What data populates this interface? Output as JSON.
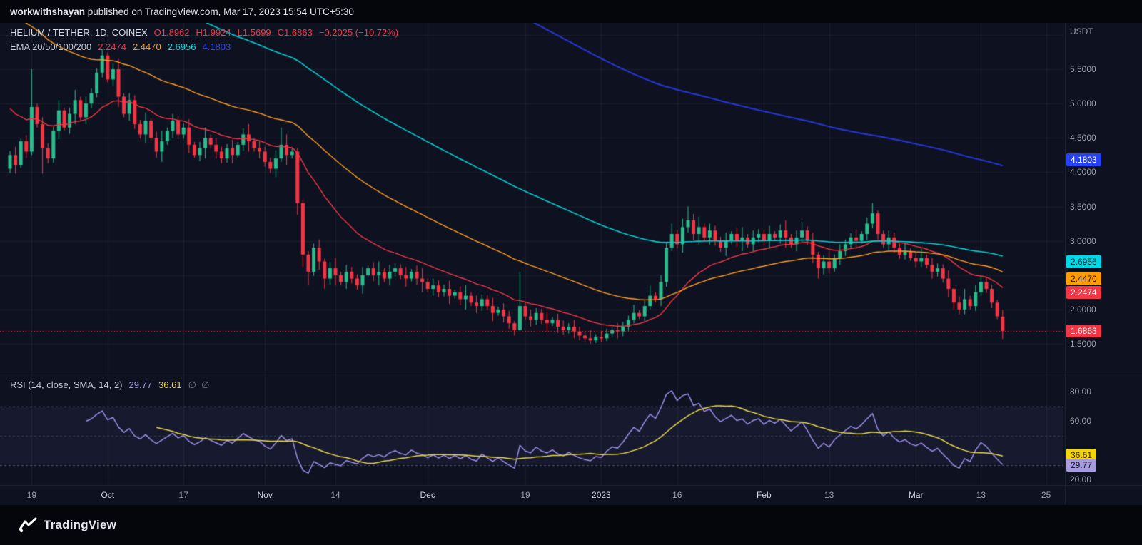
{
  "banner": {
    "user": "workwithshayan",
    "rest": " published on TradingView.com, Mar 17, 2023 15:54 UTC+5:30"
  },
  "header": {
    "symbol": "HELIUM / TETHER, 1D, COINEX",
    "ohlc": {
      "open": "O1.8962",
      "high": "H1.9924",
      "low": "L1.5699",
      "close": "C1.6863",
      "change": "−0.2025 (−10.72%)"
    },
    "ema_label": "EMA 20/50/100/200",
    "ema_values": [
      {
        "text": "2.2474",
        "color": "#f23645"
      },
      {
        "text": "2.4470",
        "color": "#ff9d1c"
      },
      {
        "text": "2.6956",
        "color": "#00dfdf"
      },
      {
        "text": "4.1803",
        "color": "#3148ee"
      }
    ]
  },
  "rsi_legend": {
    "label": "RSI (14, close, SMA, 14, 2)",
    "value_rsi": "29.77",
    "value_sma": "36.61",
    "empty": "∅  ∅"
  },
  "price_axis": {
    "currency": "USDT",
    "labels": [
      {
        "text": "5.5000",
        "price": 5.5
      },
      {
        "text": "5.0000",
        "price": 5.0
      },
      {
        "text": "4.5000",
        "price": 4.5
      },
      {
        "text": "4.0000",
        "price": 4.0
      },
      {
        "text": "3.5000",
        "price": 3.5
      },
      {
        "text": "3.0000",
        "price": 3.0
      },
      {
        "text": "2.0000",
        "price": 2.0
      },
      {
        "text": "1.5000",
        "price": 1.5
      }
    ],
    "badges": [
      {
        "text": "4.1803",
        "price": 4.1803,
        "bg": "#2742f5",
        "fg": "#ffffff"
      },
      {
        "text": "2.6956",
        "price": 2.6956,
        "bg": "#00d8e8",
        "fg": "#032b30"
      },
      {
        "text": "2.4470",
        "price": 2.447,
        "bg": "#ff9d00",
        "fg": "#2b1700"
      },
      {
        "text": "2.2474",
        "price": 2.2474,
        "bg": "#f23645",
        "fg": "#ffffff"
      },
      {
        "text": "1.6863",
        "price": 1.6863,
        "bg": "#f23645",
        "fg": "#ffffff"
      }
    ]
  },
  "rsi_axis": {
    "labels": [
      {
        "text": "80.00",
        "value": 80
      },
      {
        "text": "60.00",
        "value": 60
      },
      {
        "text": "20.00",
        "value": 20
      }
    ],
    "badges": [
      {
        "text": "36.61",
        "value": 36.61,
        "bg": "#f3d409",
        "fg": "#2b2300"
      },
      {
        "text": "29.77",
        "value": 29.77,
        "bg": "#a79be0",
        "fg": "#131026"
      }
    ]
  },
  "time_axis": {
    "labels": [
      {
        "text": "19",
        "i": 4,
        "major": false
      },
      {
        "text": "Oct",
        "i": 18,
        "major": true
      },
      {
        "text": "17",
        "i": 32,
        "major": false
      },
      {
        "text": "Nov",
        "i": 47,
        "major": true
      },
      {
        "text": "14",
        "i": 60,
        "major": false
      },
      {
        "text": "Dec",
        "i": 77,
        "major": true
      },
      {
        "text": "19",
        "i": 95,
        "major": false
      },
      {
        "text": "2023",
        "i": 109,
        "major": true
      },
      {
        "text": "16",
        "i": 123,
        "major": false
      },
      {
        "text": "Feb",
        "i": 139,
        "major": true
      },
      {
        "text": "13",
        "i": 151,
        "major": false
      },
      {
        "text": "Mar",
        "i": 167,
        "major": true
      },
      {
        "text": "13",
        "i": 179,
        "major": false
      },
      {
        "text": "25",
        "i": 191,
        "major": false
      }
    ]
  },
  "footer": {
    "brand": "TradingView"
  },
  "chart_data": {
    "type": "candlestick",
    "symbol": "HELIUM / TETHER",
    "interval": "1D",
    "exchange": "COINEX",
    "last_price": 1.6863,
    "last_candle_ohlc": {
      "o": 1.8962,
      "h": 1.9924,
      "l": 1.5699,
      "c": 1.6863
    },
    "change": -0.2025,
    "change_pct": -10.72,
    "grid_prices": [
      1.5,
      2.0,
      2.5,
      3.0,
      3.5,
      4.0,
      4.5,
      5.0,
      5.5,
      6.0
    ],
    "colors": {
      "up": "#2cbc8e",
      "down": "#f23645"
    },
    "candles": [
      [
        4.05,
        4.31,
        3.99,
        4.25
      ],
      [
        4.25,
        4.37,
        3.98,
        4.1
      ],
      [
        4.1,
        4.49,
        4.06,
        4.45
      ],
      [
        4.45,
        4.54,
        4.21,
        4.3
      ],
      [
        4.3,
        5.5,
        4.25,
        4.95
      ],
      [
        4.95,
        5.0,
        4.65,
        4.7
      ],
      [
        4.7,
        4.8,
        3.98,
        4.35
      ],
      [
        4.35,
        4.42,
        4.13,
        4.2
      ],
      [
        4.2,
        4.66,
        4.14,
        4.6
      ],
      [
        4.6,
        5.05,
        4.48,
        4.9
      ],
      [
        4.9,
        4.94,
        4.61,
        4.65
      ],
      [
        4.65,
        4.94,
        4.56,
        4.85
      ],
      [
        4.85,
        5.2,
        4.7,
        5.05
      ],
      [
        5.05,
        5.1,
        4.75,
        4.8
      ],
      [
        4.8,
        5.1,
        4.7,
        5.0
      ],
      [
        5.0,
        5.22,
        4.93,
        5.15
      ],
      [
        5.15,
        5.51,
        5.09,
        5.45
      ],
      [
        5.45,
        5.78,
        5.38,
        5.7
      ],
      [
        5.7,
        5.74,
        5.31,
        5.35
      ],
      [
        5.35,
        5.59,
        5.26,
        5.5
      ],
      [
        5.5,
        5.65,
        4.95,
        5.1
      ],
      [
        5.1,
        5.15,
        4.8,
        4.85
      ],
      [
        4.85,
        5.15,
        4.75,
        5.05
      ],
      [
        5.05,
        5.12,
        4.63,
        4.7
      ],
      [
        4.7,
        4.76,
        4.49,
        4.55
      ],
      [
        4.55,
        4.87,
        4.43,
        4.75
      ],
      [
        4.75,
        4.79,
        4.46,
        4.5
      ],
      [
        4.5,
        4.59,
        4.21,
        4.3
      ],
      [
        4.3,
        4.6,
        4.15,
        4.45
      ],
      [
        4.45,
        4.65,
        4.4,
        4.6
      ],
      [
        4.6,
        4.85,
        4.5,
        4.75
      ],
      [
        4.75,
        4.82,
        4.48,
        4.55
      ],
      [
        4.55,
        4.71,
        4.49,
        4.65
      ],
      [
        4.65,
        4.77,
        4.28,
        4.4
      ],
      [
        4.4,
        4.44,
        4.21,
        4.25
      ],
      [
        4.25,
        4.44,
        4.16,
        4.35
      ],
      [
        4.35,
        4.65,
        4.2,
        4.5
      ],
      [
        4.5,
        4.55,
        4.35,
        4.4
      ],
      [
        4.4,
        4.5,
        4.2,
        4.3
      ],
      [
        4.3,
        4.37,
        4.13,
        4.2
      ],
      [
        4.2,
        4.41,
        4.14,
        4.35
      ],
      [
        4.35,
        4.47,
        4.13,
        4.25
      ],
      [
        4.25,
        4.44,
        4.21,
        4.4
      ],
      [
        4.4,
        4.64,
        4.31,
        4.55
      ],
      [
        4.55,
        4.7,
        4.3,
        4.45
      ],
      [
        4.45,
        4.5,
        4.3,
        4.35
      ],
      [
        4.35,
        4.45,
        4.2,
        4.3
      ],
      [
        4.3,
        4.37,
        4.08,
        4.15
      ],
      [
        4.15,
        4.21,
        3.99,
        4.05
      ],
      [
        4.05,
        4.32,
        3.93,
        4.2
      ],
      [
        4.2,
        4.65,
        4.15,
        4.4
      ],
      [
        4.4,
        4.55,
        4.1,
        4.25
      ],
      [
        4.25,
        4.35,
        4.2,
        4.3
      ],
      [
        4.3,
        4.35,
        3.38,
        3.55
      ],
      [
        3.55,
        3.6,
        2.62,
        2.8
      ],
      [
        2.8,
        2.85,
        2.35,
        2.55
      ],
      [
        2.55,
        2.96,
        2.49,
        2.9
      ],
      [
        2.9,
        3.02,
        2.58,
        2.7
      ],
      [
        2.7,
        2.74,
        2.3,
        2.45
      ],
      [
        2.45,
        2.69,
        2.36,
        2.6
      ],
      [
        2.6,
        2.75,
        2.35,
        2.5
      ],
      [
        2.5,
        2.55,
        2.35,
        2.4
      ],
      [
        2.4,
        2.65,
        2.3,
        2.55
      ],
      [
        2.55,
        2.62,
        2.38,
        2.45
      ],
      [
        2.45,
        2.51,
        2.29,
        2.35
      ],
      [
        2.35,
        2.62,
        2.23,
        2.5
      ],
      [
        2.5,
        2.64,
        2.46,
        2.6
      ],
      [
        2.6,
        2.69,
        2.41,
        2.5
      ],
      [
        2.5,
        2.7,
        2.35,
        2.55
      ],
      [
        2.55,
        2.6,
        2.4,
        2.45
      ],
      [
        2.45,
        2.65,
        2.35,
        2.55
      ],
      [
        2.55,
        2.67,
        2.48,
        2.6
      ],
      [
        2.6,
        2.66,
        2.44,
        2.5
      ],
      [
        2.5,
        2.62,
        2.33,
        2.45
      ],
      [
        2.45,
        2.59,
        2.41,
        2.55
      ],
      [
        2.55,
        2.64,
        2.36,
        2.45
      ],
      [
        2.45,
        2.6,
        2.25,
        2.4
      ],
      [
        2.4,
        2.45,
        2.25,
        2.3
      ],
      [
        2.3,
        2.45,
        2.2,
        2.35
      ],
      [
        2.35,
        2.42,
        2.18,
        2.25
      ],
      [
        2.25,
        2.36,
        2.19,
        2.3
      ],
      [
        2.3,
        2.42,
        2.08,
        2.2
      ],
      [
        2.2,
        2.29,
        2.16,
        2.25
      ],
      [
        2.25,
        2.34,
        2.06,
        2.15
      ],
      [
        2.15,
        2.35,
        2.0,
        2.2
      ],
      [
        2.2,
        2.25,
        2.05,
        2.1
      ],
      [
        2.1,
        2.2,
        1.95,
        2.05
      ],
      [
        2.05,
        2.22,
        1.98,
        2.15
      ],
      [
        2.15,
        2.21,
        1.99,
        2.05
      ],
      [
        2.05,
        2.17,
        1.83,
        1.95
      ],
      [
        1.95,
        2.04,
        1.91,
        2.0
      ],
      [
        2.0,
        2.09,
        1.81,
        1.9
      ],
      [
        1.9,
        1.98,
        1.72,
        1.8
      ],
      [
        1.8,
        1.83,
        1.62,
        1.7
      ],
      [
        1.7,
        2.55,
        1.68,
        2.05
      ],
      [
        2.05,
        2.1,
        1.85,
        1.9
      ],
      [
        1.9,
        2.0,
        1.75,
        1.85
      ],
      [
        1.85,
        2.02,
        1.78,
        1.95
      ],
      [
        1.95,
        2.01,
        1.79,
        1.85
      ],
      [
        1.85,
        1.97,
        1.68,
        1.8
      ],
      [
        1.8,
        1.89,
        1.76,
        1.85
      ],
      [
        1.85,
        1.94,
        1.66,
        1.75
      ],
      [
        1.75,
        1.84,
        1.63,
        1.7
      ],
      [
        1.7,
        1.8,
        1.65,
        1.75
      ],
      [
        1.75,
        1.85,
        1.58,
        1.68
      ],
      [
        1.68,
        1.75,
        1.55,
        1.62
      ],
      [
        1.62,
        1.68,
        1.52,
        1.58
      ],
      [
        1.58,
        1.7,
        1.5,
        1.55
      ],
      [
        1.55,
        1.64,
        1.51,
        1.6
      ],
      [
        1.6,
        1.69,
        1.52,
        1.58
      ],
      [
        1.58,
        1.72,
        1.54,
        1.65
      ],
      [
        1.65,
        1.75,
        1.6,
        1.7
      ],
      [
        1.7,
        1.8,
        1.58,
        1.68
      ],
      [
        1.68,
        1.82,
        1.61,
        1.75
      ],
      [
        1.75,
        1.91,
        1.69,
        1.85
      ],
      [
        1.85,
        2.07,
        1.8,
        1.95
      ],
      [
        1.95,
        1.99,
        1.86,
        1.9
      ],
      [
        1.9,
        2.14,
        1.81,
        2.05
      ],
      [
        2.05,
        2.35,
        2.0,
        2.2
      ],
      [
        2.2,
        2.25,
        2.1,
        2.15
      ],
      [
        2.15,
        2.5,
        2.05,
        2.4
      ],
      [
        2.4,
        2.97,
        2.33,
        2.9
      ],
      [
        2.9,
        3.25,
        2.85,
        3.1
      ],
      [
        3.1,
        3.16,
        2.89,
        2.95
      ],
      [
        2.95,
        3.32,
        2.83,
        3.2
      ],
      [
        3.2,
        3.5,
        3.12,
        3.3
      ],
      [
        3.3,
        3.39,
        3.01,
        3.1
      ],
      [
        3.1,
        3.35,
        2.95,
        3.2
      ],
      [
        3.2,
        3.25,
        3.0,
        3.05
      ],
      [
        3.05,
        3.25,
        2.95,
        3.15
      ],
      [
        3.15,
        3.22,
        2.93,
        3.0
      ],
      [
        3.0,
        3.06,
        2.84,
        2.9
      ],
      [
        2.9,
        3.12,
        2.78,
        3.0
      ],
      [
        3.0,
        3.14,
        2.96,
        3.1
      ],
      [
        3.1,
        3.19,
        2.91,
        3.0
      ],
      [
        3.0,
        3.2,
        2.85,
        3.05
      ],
      [
        3.05,
        3.1,
        2.9,
        2.95
      ],
      [
        2.95,
        3.15,
        2.85,
        3.05
      ],
      [
        3.05,
        3.17,
        2.98,
        3.1
      ],
      [
        3.1,
        3.16,
        2.94,
        3.0
      ],
      [
        3.0,
        3.22,
        2.88,
        3.1
      ],
      [
        3.1,
        3.14,
        3.01,
        3.05
      ],
      [
        3.05,
        3.24,
        2.96,
        3.15
      ],
      [
        3.15,
        3.3,
        2.9,
        3.05
      ],
      [
        3.05,
        3.1,
        2.9,
        2.95
      ],
      [
        2.95,
        3.15,
        2.85,
        3.05
      ],
      [
        3.05,
        3.28,
        2.98,
        3.15
      ],
      [
        3.15,
        3.21,
        2.94,
        3.0
      ],
      [
        3.0,
        3.12,
        2.68,
        2.8
      ],
      [
        2.8,
        2.84,
        2.45,
        2.6
      ],
      [
        2.6,
        2.79,
        2.51,
        2.7
      ],
      [
        2.7,
        2.85,
        2.52,
        2.6
      ],
      [
        2.6,
        2.8,
        2.55,
        2.75
      ],
      [
        2.75,
        2.95,
        2.65,
        2.85
      ],
      [
        2.85,
        3.02,
        2.78,
        2.95
      ],
      [
        2.95,
        3.11,
        2.89,
        3.05
      ],
      [
        3.05,
        3.17,
        2.88,
        3.0
      ],
      [
        3.0,
        3.14,
        2.96,
        3.1
      ],
      [
        3.1,
        3.34,
        3.01,
        3.25
      ],
      [
        3.25,
        3.55,
        3.18,
        3.4
      ],
      [
        3.4,
        3.44,
        3.02,
        3.1
      ],
      [
        3.1,
        3.15,
        2.9,
        2.95
      ],
      [
        2.95,
        3.15,
        2.85,
        3.05
      ],
      [
        3.05,
        3.12,
        2.83,
        2.9
      ],
      [
        2.9,
        2.96,
        2.74,
        2.8
      ],
      [
        2.8,
        2.97,
        2.73,
        2.85
      ],
      [
        2.85,
        2.89,
        2.71,
        2.75
      ],
      [
        2.75,
        2.84,
        2.61,
        2.7
      ],
      [
        2.7,
        2.9,
        2.62,
        2.75
      ],
      [
        2.75,
        2.8,
        2.6,
        2.65
      ],
      [
        2.65,
        2.75,
        2.45,
        2.55
      ],
      [
        2.55,
        2.67,
        2.48,
        2.6
      ],
      [
        2.6,
        2.66,
        2.39,
        2.45
      ],
      [
        2.45,
        2.57,
        2.18,
        2.3
      ],
      [
        2.3,
        2.33,
        2.0,
        2.1
      ],
      [
        2.1,
        2.19,
        1.93,
        2.0
      ],
      [
        2.0,
        2.3,
        1.93,
        2.15
      ],
      [
        2.15,
        2.2,
        2.0,
        2.05
      ],
      [
        2.05,
        2.35,
        1.98,
        2.25
      ],
      [
        2.25,
        2.5,
        2.2,
        2.4
      ],
      [
        2.4,
        2.46,
        2.24,
        2.3
      ],
      [
        2.3,
        2.36,
        2.02,
        2.1
      ],
      [
        2.1,
        2.14,
        1.86,
        1.9
      ],
      [
        1.8962,
        1.9924,
        1.5699,
        1.6863
      ]
    ],
    "overlays": {
      "ema": {
        "periods": [
          20,
          50,
          100,
          200
        ],
        "seeds": [
          5.0,
          6.5,
          7.8,
          11.0
        ],
        "colors": [
          "#f23645",
          "#ff9d1c",
          "#00cfd4",
          "#2636d8"
        ],
        "widths": [
          1.4,
          1.4,
          1.6,
          2.0
        ],
        "last_values": [
          2.2474,
          2.447,
          2.6956,
          4.1803
        ]
      }
    },
    "indicator": {
      "type": "rsi",
      "period": 14,
      "smoothing_period": 14,
      "levels": [
        70,
        50,
        30
      ],
      "band_fill": "rgba(143,131,216,0.08)",
      "last_rsi": 29.77,
      "last_sma": 36.61,
      "colors": {
        "rsi": "#9d8ce8",
        "sma": "#e5d44a"
      }
    }
  }
}
